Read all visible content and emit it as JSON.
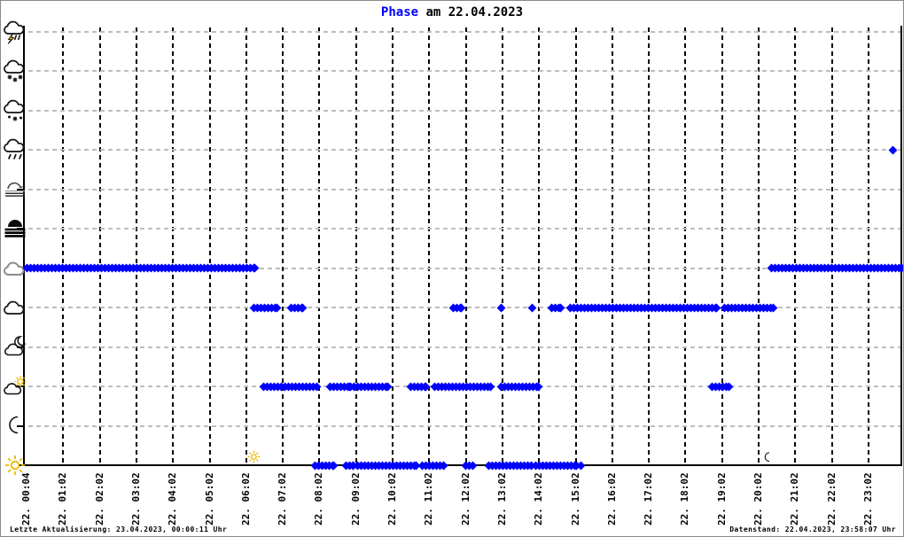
{
  "window": {
    "title_accent": "Phase",
    "title_rest": " am 22.04.2023"
  },
  "status_bar": {
    "left": "Letzte Aktualisierung: 23.04.2023, 00:00:11 Uhr",
    "right": "Datenstand: 22.04.2023, 23:58:07 Uhr"
  },
  "chart_data": {
    "type": "scatter",
    "title": "Phase am 22.04.2023",
    "x_axis": {
      "tick_labels": [
        "22. 00:04",
        "22. 01:02",
        "22. 02:02",
        "22. 03:02",
        "22. 04:02",
        "22. 05:02",
        "22. 06:02",
        "22. 07:02",
        "22. 08:02",
        "22. 09:02",
        "22. 10:02",
        "22. 11:02",
        "22. 12:02",
        "22. 13:02",
        "22. 14:02",
        "22. 15:02",
        "22. 16:02",
        "22. 17:02",
        "22. 18:02",
        "22. 19:02",
        "22. 20:02",
        "22. 21:02",
        "22. 22:02",
        "22. 23:02"
      ]
    },
    "y_axis": {
      "rows": [
        {
          "id": "thunderstorm",
          "icon": "thunderstorm-icon"
        },
        {
          "id": "snow",
          "icon": "snow-cloud-icon"
        },
        {
          "id": "sleet",
          "icon": "sleet-cloud-icon"
        },
        {
          "id": "rain",
          "icon": "rain-cloud-icon"
        },
        {
          "id": "mist",
          "icon": "mist-icon"
        },
        {
          "id": "fog",
          "icon": "fog-icon"
        },
        {
          "id": "overcast",
          "icon": "overcast-cloud-icon"
        },
        {
          "id": "cloudy",
          "icon": "cloudy-cloud-icon"
        },
        {
          "id": "night-partly-cloudy",
          "icon": "moon-cloud-icon"
        },
        {
          "id": "day-partly-cloudy",
          "icon": "sun-cloud-icon"
        },
        {
          "id": "clear-night",
          "icon": "moon-icon"
        },
        {
          "id": "clear-day",
          "icon": "sun-icon"
        }
      ]
    },
    "series": [
      {
        "row": "rain",
        "segments": [],
        "points": [
          "23:44"
        ]
      },
      {
        "row": "overcast",
        "segments": [
          [
            "00:04",
            "06:18"
          ],
          [
            "20:25",
            "23:58"
          ]
        ],
        "points": []
      },
      {
        "row": "cloudy",
        "segments": [
          [
            "06:16",
            "06:55"
          ],
          [
            "07:17",
            "07:36"
          ],
          [
            "11:43",
            "11:57"
          ],
          [
            "14:25",
            "14:40"
          ],
          [
            "14:56",
            "18:55"
          ],
          [
            "19:08",
            "20:28"
          ]
        ],
        "points": [
          "13:02",
          "13:53"
        ]
      },
      {
        "row": "day-partly-cloudy",
        "segments": [
          [
            "06:33",
            "07:25"
          ],
          [
            "07:31",
            "08:00"
          ],
          [
            "08:22",
            "08:53"
          ],
          [
            "08:55",
            "09:56"
          ],
          [
            "10:34",
            "10:59"
          ],
          [
            "11:13",
            "12:45"
          ],
          [
            "13:02",
            "14:03"
          ],
          [
            "18:48",
            "19:16"
          ]
        ],
        "points": []
      },
      {
        "row": "clear-day",
        "segments": [
          [
            "07:57",
            "08:27"
          ],
          [
            "08:48",
            "09:00"
          ],
          [
            "09:07",
            "10:42"
          ],
          [
            "10:52",
            "11:28"
          ],
          [
            "12:04",
            "12:15"
          ],
          [
            "12:41",
            "13:51"
          ],
          [
            "13:58",
            "15:06"
          ]
        ],
        "points": [
          "15:13"
        ]
      }
    ],
    "event_markers": [
      {
        "icon": "sunrise-sun-icon",
        "time": "06:17"
      },
      {
        "icon": "sunset-moon-icon",
        "time": "20:19"
      }
    ],
    "layout_hints": {
      "grid": "on",
      "legend": "none"
    },
    "colors": {
      "point_color": "#0000ff",
      "title_accent": "#0000ff",
      "h_grid": "#bdbdbd",
      "v_grid": "#000000",
      "sun_yellow": "#edb800",
      "bolt_yellow": "#ffd400"
    }
  }
}
